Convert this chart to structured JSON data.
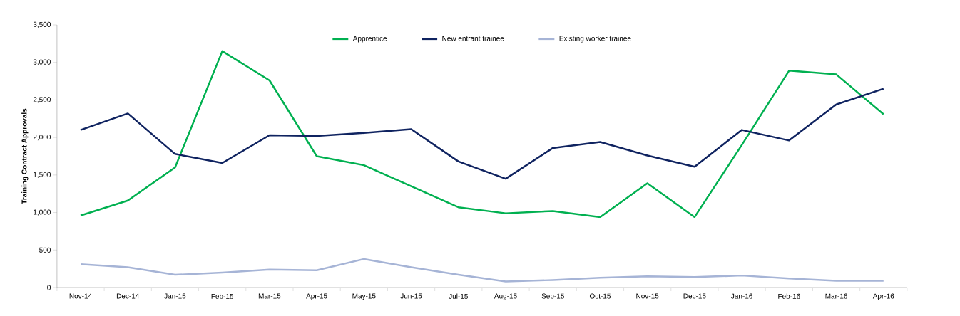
{
  "chart_data": {
    "type": "line",
    "ylabel": "Training Contract Approvals",
    "categories": [
      "Nov-14",
      "Dec-14",
      "Jan-15",
      "Feb-15",
      "Mar-15",
      "Apr-15",
      "May-15",
      "Jun-15",
      "Jul-15",
      "Aug-15",
      "Sep-15",
      "Oct-15",
      "Nov-15",
      "Dec-15",
      "Jan-16",
      "Feb-16",
      "Mar-16",
      "Apr-16"
    ],
    "series": [
      {
        "name": "Apprentice",
        "color": "#00b050",
        "values": [
          960,
          1160,
          1600,
          3150,
          2760,
          1750,
          1630,
          1350,
          1070,
          990,
          1020,
          940,
          1390,
          940,
          1900,
          2890,
          2840,
          2310
        ]
      },
      {
        "name": "New entrant trainee",
        "color": "#0f2360",
        "values": [
          2100,
          2320,
          1780,
          1660,
          2030,
          2020,
          2060,
          2110,
          1680,
          1450,
          1860,
          1940,
          1760,
          1610,
          2100,
          1960,
          2440,
          2650
        ]
      },
      {
        "name": "Existing worker trainee",
        "color": "#a6b4d6",
        "values": [
          310,
          270,
          170,
          200,
          240,
          230,
          380,
          270,
          170,
          80,
          100,
          130,
          150,
          140,
          160,
          120,
          90,
          90
        ]
      }
    ],
    "ylim": [
      0,
      3500
    ],
    "yticks": [
      {
        "value": 0,
        "label": "0"
      },
      {
        "value": 500,
        "label": "500"
      },
      {
        "value": 1000,
        "label": "1,000"
      },
      {
        "value": 1500,
        "label": "1,500"
      },
      {
        "value": 2000,
        "label": "2,000"
      },
      {
        "value": 2500,
        "label": "2,500"
      },
      {
        "value": 3000,
        "label": "3,000"
      },
      {
        "value": 3500,
        "label": "3,500"
      }
    ],
    "legend": "top",
    "marker": "none",
    "line_style": "solid"
  }
}
